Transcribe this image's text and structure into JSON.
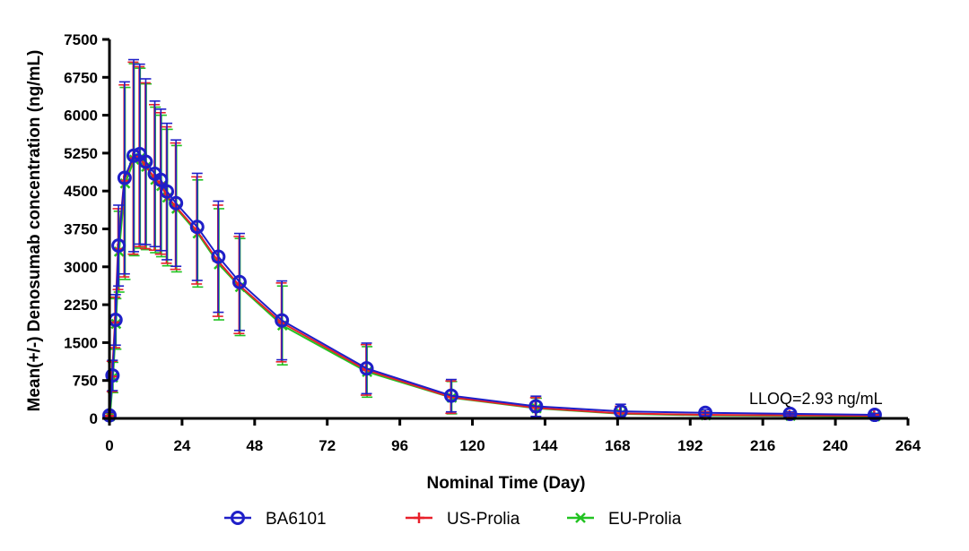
{
  "chart_data": {
    "type": "line",
    "title": "",
    "xlabel": "Nominal Time (Day)",
    "ylabel": "Mean(+/-) Denosumab concentration (ng/mL)",
    "xlim": [
      0,
      264
    ],
    "ylim": [
      0,
      7500
    ],
    "xticks": [
      0,
      24,
      48,
      72,
      96,
      120,
      144,
      168,
      192,
      216,
      240,
      264
    ],
    "yticks": [
      0,
      750,
      1500,
      2250,
      3000,
      3750,
      4500,
      5250,
      6000,
      6750,
      7500
    ],
    "x": [
      0,
      1,
      2,
      3,
      5,
      8,
      10,
      12,
      15,
      17,
      19,
      22,
      29,
      36,
      43,
      57,
      85,
      113,
      141,
      169,
      197,
      225,
      253
    ],
    "annotation": "LLOQ=2.93 ng/mL",
    "legend_position": "bottom",
    "series": [
      {
        "name": "BA6101",
        "color": "#1f1fc8",
        "marker": "circle",
        "values": [
          60,
          850,
          1950,
          3420,
          4760,
          5200,
          5230,
          5080,
          4840,
          4720,
          4490,
          4260,
          3790,
          3200,
          2700,
          1940,
          990,
          450,
          240,
          140,
          110,
          90,
          70
        ],
        "sd": [
          60,
          300,
          500,
          800,
          1900,
          1900,
          1780,
          1640,
          1440,
          1400,
          1350,
          1250,
          1060,
          1100,
          960,
          780,
          500,
          320,
          200,
          140,
          60,
          40,
          30
        ]
      },
      {
        "name": "US-Prolia",
        "color": "#e8202a",
        "marker": "plus",
        "values": [
          50,
          830,
          1900,
          3350,
          4700,
          5150,
          5180,
          5000,
          4770,
          4650,
          4420,
          4200,
          3720,
          3120,
          2640,
          1900,
          960,
          420,
          210,
          100,
          70,
          60,
          50
        ],
        "sd": [
          60,
          300,
          500,
          800,
          1900,
          1900,
          1780,
          1640,
          1440,
          1400,
          1350,
          1250,
          1060,
          1100,
          960,
          780,
          500,
          320,
          200,
          140,
          60,
          40,
          30
        ]
      },
      {
        "name": "EU-Prolia",
        "color": "#22c322",
        "marker": "x",
        "values": [
          40,
          810,
          1870,
          3300,
          4650,
          5120,
          5150,
          4980,
          4720,
          4600,
          4370,
          4150,
          3660,
          3050,
          2600,
          1840,
          920,
          410,
          200,
          90,
          60,
          50,
          40
        ],
        "sd": [
          60,
          300,
          500,
          800,
          1900,
          1900,
          1780,
          1640,
          1440,
          1400,
          1350,
          1250,
          1060,
          1100,
          960,
          780,
          500,
          320,
          200,
          140,
          60,
          40,
          30
        ]
      }
    ]
  }
}
